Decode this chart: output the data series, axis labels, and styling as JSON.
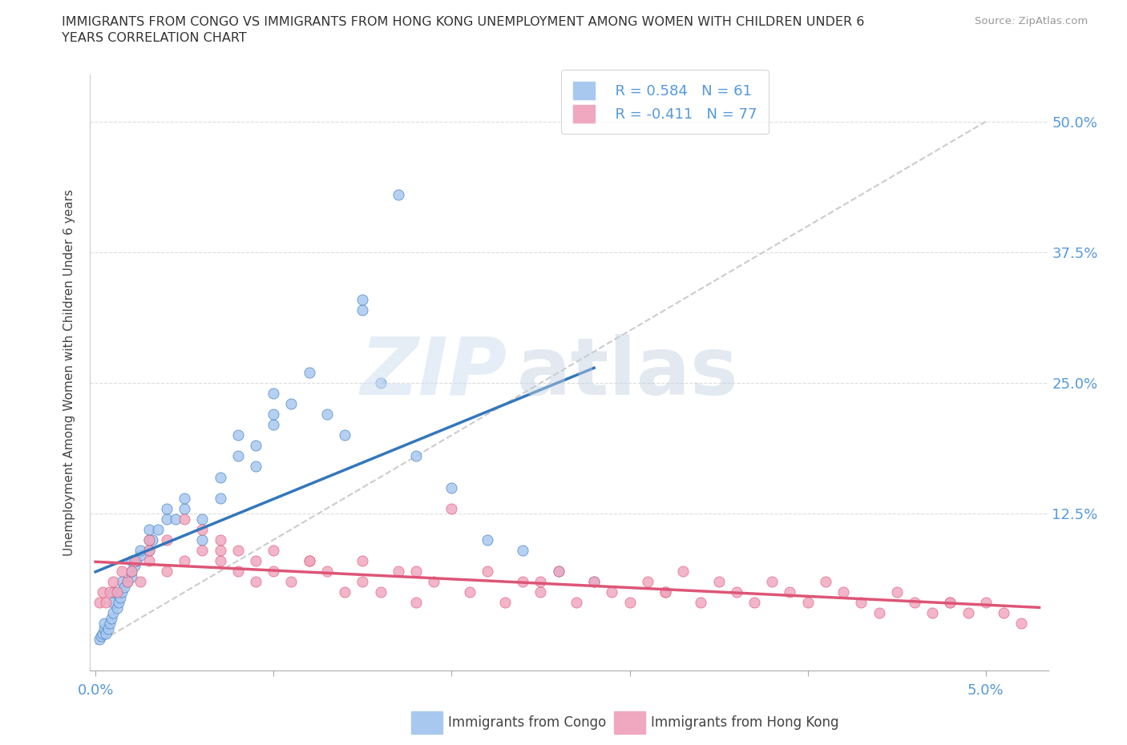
{
  "title_line1": "IMMIGRANTS FROM CONGO VS IMMIGRANTS FROM HONG KONG UNEMPLOYMENT AMONG WOMEN WITH CHILDREN UNDER 6",
  "title_line2": "YEARS CORRELATION CHART",
  "source": "Source: ZipAtlas.com",
  "ylabel": "Unemployment Among Women with Children Under 6 years",
  "ytick_vals": [
    0.0,
    0.125,
    0.25,
    0.375,
    0.5
  ],
  "ytick_labels": [
    "",
    "12.5%",
    "25.0%",
    "37.5%",
    "50.0%"
  ],
  "xlim": [
    -0.0003,
    0.0535
  ],
  "ylim": [
    -0.025,
    0.545
  ],
  "legend_r1": "R = 0.584",
  "legend_n1": "N = 61",
  "legend_r2": "R = -0.411",
  "legend_n2": "N = 77",
  "legend_label1": "Immigrants from Congo",
  "legend_label2": "Immigrants from Hong Kong",
  "color_congo": "#a8c8f0",
  "color_hk": "#f0a8c0",
  "color_trendline_congo": "#3377bb",
  "color_trendline_hk": "#dd5577",
  "color_refline": "#cccccc",
  "watermark_zip": "ZIP",
  "watermark_atlas": "atlas",
  "congo_x": [
    0.0002,
    0.0003,
    0.0004,
    0.0005,
    0.0005,
    0.0006,
    0.0007,
    0.0008,
    0.0009,
    0.001,
    0.001,
    0.001,
    0.0012,
    0.0013,
    0.0014,
    0.0015,
    0.0015,
    0.0016,
    0.0018,
    0.002,
    0.002,
    0.002,
    0.0022,
    0.0023,
    0.0025,
    0.0025,
    0.003,
    0.003,
    0.003,
    0.0032,
    0.0035,
    0.004,
    0.004,
    0.0045,
    0.005,
    0.005,
    0.006,
    0.006,
    0.007,
    0.007,
    0.008,
    0.008,
    0.009,
    0.009,
    0.01,
    0.01,
    0.01,
    0.011,
    0.012,
    0.013,
    0.014,
    0.015,
    0.015,
    0.016,
    0.017,
    0.018,
    0.02,
    0.022,
    0.024,
    0.026,
    0.028
  ],
  "congo_y": [
    0.005,
    0.008,
    0.01,
    0.015,
    0.02,
    0.01,
    0.015,
    0.02,
    0.025,
    0.03,
    0.04,
    0.05,
    0.035,
    0.04,
    0.045,
    0.05,
    0.06,
    0.055,
    0.06,
    0.065,
    0.07,
    0.08,
    0.075,
    0.08,
    0.085,
    0.09,
    0.09,
    0.1,
    0.11,
    0.1,
    0.11,
    0.12,
    0.13,
    0.12,
    0.13,
    0.14,
    0.1,
    0.12,
    0.14,
    0.16,
    0.18,
    0.2,
    0.17,
    0.19,
    0.21,
    0.22,
    0.24,
    0.23,
    0.26,
    0.22,
    0.2,
    0.32,
    0.33,
    0.25,
    0.43,
    0.18,
    0.15,
    0.1,
    0.09,
    0.07,
    0.06
  ],
  "hk_x": [
    0.0002,
    0.0004,
    0.0006,
    0.0008,
    0.001,
    0.0012,
    0.0015,
    0.0018,
    0.002,
    0.0022,
    0.0025,
    0.003,
    0.003,
    0.004,
    0.004,
    0.005,
    0.005,
    0.006,
    0.006,
    0.007,
    0.007,
    0.008,
    0.008,
    0.009,
    0.009,
    0.01,
    0.01,
    0.011,
    0.012,
    0.013,
    0.014,
    0.015,
    0.015,
    0.016,
    0.017,
    0.018,
    0.019,
    0.02,
    0.021,
    0.022,
    0.023,
    0.024,
    0.025,
    0.026,
    0.027,
    0.028,
    0.029,
    0.03,
    0.031,
    0.032,
    0.033,
    0.034,
    0.035,
    0.036,
    0.037,
    0.038,
    0.039,
    0.04,
    0.041,
    0.042,
    0.043,
    0.044,
    0.045,
    0.046,
    0.047,
    0.048,
    0.049,
    0.05,
    0.051,
    0.052,
    0.003,
    0.007,
    0.012,
    0.018,
    0.025,
    0.032,
    0.048
  ],
  "hk_y": [
    0.04,
    0.05,
    0.04,
    0.05,
    0.06,
    0.05,
    0.07,
    0.06,
    0.07,
    0.08,
    0.06,
    0.08,
    0.09,
    0.07,
    0.1,
    0.08,
    0.12,
    0.09,
    0.11,
    0.08,
    0.1,
    0.07,
    0.09,
    0.06,
    0.08,
    0.07,
    0.09,
    0.06,
    0.08,
    0.07,
    0.05,
    0.06,
    0.08,
    0.05,
    0.07,
    0.04,
    0.06,
    0.13,
    0.05,
    0.07,
    0.04,
    0.06,
    0.05,
    0.07,
    0.04,
    0.06,
    0.05,
    0.04,
    0.06,
    0.05,
    0.07,
    0.04,
    0.06,
    0.05,
    0.04,
    0.06,
    0.05,
    0.04,
    0.06,
    0.05,
    0.04,
    0.03,
    0.05,
    0.04,
    0.03,
    0.04,
    0.03,
    0.04,
    0.03,
    0.02,
    0.1,
    0.09,
    0.08,
    0.07,
    0.06,
    0.05,
    0.04
  ]
}
